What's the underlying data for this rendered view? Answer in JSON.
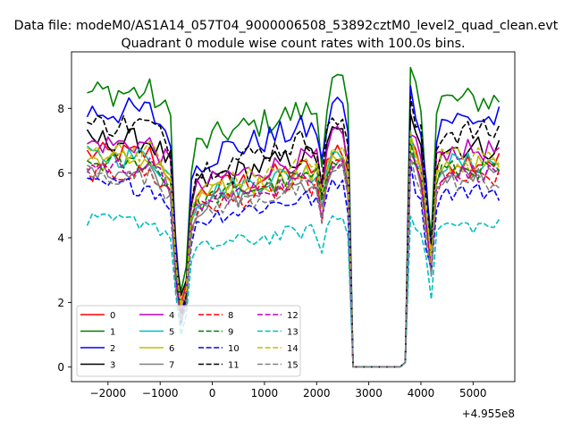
{
  "chart_data": {
    "type": "line",
    "suptitle": "Data file: modeM0/AS1A14_057T04_9000006508_53892cztM0_level2_quad_clean.evt",
    "title": "Quadrant 0 module wise count rates with 100.0s bins.",
    "xlabel": "",
    "ylabel": "",
    "offset_text": "+4.955e8",
    "xlim": [
      -2700,
      5800
    ],
    "ylim": [
      -0.45,
      9.75
    ],
    "xticks": [
      -2000,
      -1000,
      0,
      1000,
      2000,
      3000,
      4000,
      5000
    ],
    "xtick_labels": [
      "−2000",
      "−1000",
      "0",
      "1000",
      "2000",
      "3000",
      "4000",
      "5000"
    ],
    "yticks": [
      0,
      2,
      4,
      6,
      8
    ],
    "ytick_labels": [
      "0",
      "2",
      "4",
      "6",
      "8"
    ],
    "legend_location": "lower-left",
    "legend_ncol": 4,
    "x_start": -2400,
    "x_step": 100,
    "x_count": 80,
    "dropout_profile": "dip to ~2 near -600; dip near 2150; zero from 2650 to 3650; dip near 4200",
    "series": [
      {
        "name": "0",
        "color": "#ff0000",
        "dash": "solid",
        "level": 6.6,
        "amp": 0.35
      },
      {
        "name": "1",
        "color": "#008000",
        "dash": "solid",
        "level": 8.5,
        "amp": 0.45
      },
      {
        "name": "2",
        "color": "#0000ff",
        "dash": "solid",
        "level": 7.9,
        "amp": 0.45
      },
      {
        "name": "3",
        "color": "#000000",
        "dash": "solid",
        "level": 7.0,
        "amp": 0.4
      },
      {
        "name": "4",
        "color": "#bf00bf",
        "dash": "solid",
        "level": 6.9,
        "amp": 0.35
      },
      {
        "name": "5",
        "color": "#00bfbf",
        "dash": "solid",
        "level": 6.5,
        "amp": 0.35
      },
      {
        "name": "6",
        "color": "#bfbf00",
        "dash": "solid",
        "level": 6.4,
        "amp": 0.35
      },
      {
        "name": "7",
        "color": "#808080",
        "dash": "solid",
        "level": 6.1,
        "amp": 0.3
      },
      {
        "name": "8",
        "color": "#ff0000",
        "dash": "dashed",
        "level": 6.0,
        "amp": 0.3
      },
      {
        "name": "9",
        "color": "#008000",
        "dash": "dashed",
        "level": 6.3,
        "amp": 0.3
      },
      {
        "name": "10",
        "color": "#0000ff",
        "dash": "dashed",
        "level": 5.6,
        "amp": 0.3
      },
      {
        "name": "11",
        "color": "#000000",
        "dash": "dashed",
        "level": 7.5,
        "amp": 0.4
      },
      {
        "name": "12",
        "color": "#bf00bf",
        "dash": "dashed",
        "level": 6.2,
        "amp": 0.3
      },
      {
        "name": "13",
        "color": "#00bfbf",
        "dash": "dashed",
        "level": 4.5,
        "amp": 0.25
      },
      {
        "name": "14",
        "color": "#bfbf00",
        "dash": "dashed",
        "level": 6.7,
        "amp": 0.35
      },
      {
        "name": "15",
        "color": "#808080",
        "dash": "dashed",
        "level": 5.9,
        "amp": 0.3
      }
    ]
  }
}
